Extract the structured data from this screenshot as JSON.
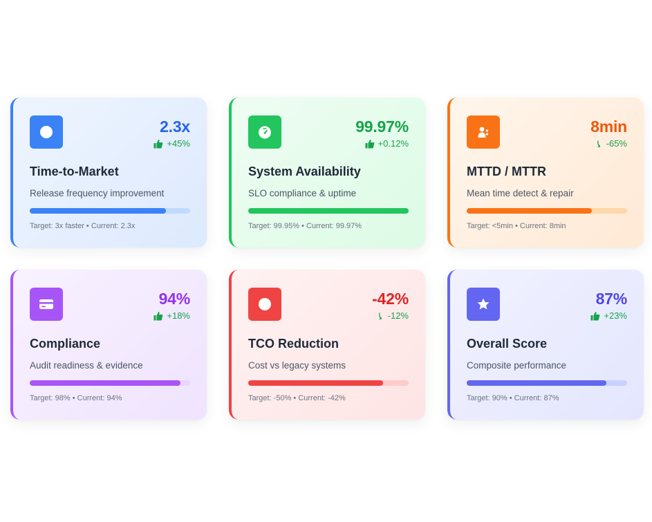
{
  "cards": [
    {
      "key": "ttm",
      "title": "Time-to-Market",
      "subtitle": "Release frequency improvement",
      "value": "2.3x",
      "trend_icon": "thumbs-up-icon",
      "trend": "+45%",
      "progress": 0.85,
      "target": "Target: 3x faster • Current: 2.3x",
      "icon": "circle-icon",
      "colors": {
        "accent": "#3b82f6",
        "value": "#2563eb",
        "bg1": "#eef5ff",
        "bg2": "#dde9fd",
        "track": "#bfdbfe"
      }
    },
    {
      "key": "availability",
      "title": "System Availability",
      "subtitle": "SLO compliance & uptime",
      "value": "99.97%",
      "trend_icon": "thumbs-up-icon",
      "trend": "+0.12%",
      "progress": 1.0,
      "target": "Target: 99.95% • Current: 99.97%",
      "icon": "gauge-icon",
      "colors": {
        "accent": "#22c55e",
        "value": "#16a34a",
        "bg1": "#effdf3",
        "bg2": "#dcfbe5",
        "track": "#bbf7d0"
      }
    },
    {
      "key": "mttd",
      "title": "MTTD / MTTR",
      "subtitle": "Mean time detect & repair",
      "value": "8min",
      "trend_icon": "arrow-down-icon",
      "trend": "-65%",
      "progress": 0.78,
      "target": "Target: <5min • Current: 8min",
      "icon": "user-dots-icon",
      "colors": {
        "accent": "#f97316",
        "value": "#ea580c",
        "bg1": "#fff6ec",
        "bg2": "#ffe9d5",
        "track": "#fed7aa"
      }
    },
    {
      "key": "compliance",
      "title": "Compliance",
      "subtitle": "Audit readiness & evidence",
      "value": "94%",
      "trend_icon": "thumbs-up-icon",
      "trend": "+18%",
      "progress": 0.94,
      "target": "Target: 98% • Current: 94%",
      "icon": "card-icon",
      "colors": {
        "accent": "#a855f7",
        "value": "#9333ea",
        "bg1": "#f8f2ff",
        "bg2": "#efe3fe",
        "track": "#e9d5ff"
      }
    },
    {
      "key": "tco",
      "title": "TCO Reduction",
      "subtitle": "Cost vs legacy systems",
      "value": "-42%",
      "trend_icon": "arrow-down-icon",
      "trend": "-12%",
      "progress": 0.84,
      "target": "Target: -50% • Current: -42%",
      "icon": "circle-icon",
      "colors": {
        "accent": "#ef4444",
        "value": "#dc2626",
        "bg1": "#fff2f2",
        "bg2": "#fee4e4",
        "track": "#fecaca"
      }
    },
    {
      "key": "overall",
      "title": "Overall Score",
      "subtitle": "Composite performance",
      "value": "87%",
      "trend_icon": "thumbs-up-icon",
      "trend": "+23%",
      "progress": 0.87,
      "target": "Target: 90% • Current: 87%",
      "icon": "star-icon",
      "colors": {
        "accent": "#6366f1",
        "value": "#4f46e5",
        "bg1": "#f1f2ff",
        "bg2": "#e3e6fe",
        "track": "#c7d2fe"
      }
    }
  ]
}
